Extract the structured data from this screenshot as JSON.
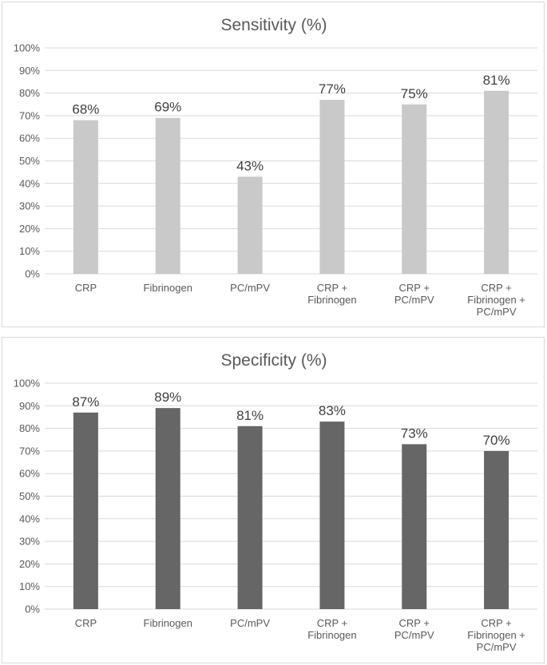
{
  "chart_data": [
    {
      "type": "bar",
      "title": "Sensitivity (%)",
      "categories": [
        [
          "CRP"
        ],
        [
          "Fibrinogen"
        ],
        [
          "PC/mPV"
        ],
        [
          "CRP +",
          "Fibrinogen"
        ],
        [
          "CRP +",
          "PC/mPV"
        ],
        [
          "CRP +",
          "Fibrinogen +",
          "PC/mPV"
        ]
      ],
      "values": [
        68,
        69,
        43,
        77,
        75,
        81
      ],
      "data_labels": [
        "68%",
        "69%",
        "43%",
        "77%",
        "75%",
        "81%"
      ],
      "yticks": [
        "0%",
        "10%",
        "20%",
        "30%",
        "40%",
        "50%",
        "60%",
        "70%",
        "80%",
        "90%",
        "100%"
      ],
      "ylim": [
        0,
        100
      ],
      "xlabel": "",
      "ylabel": "",
      "grid": true,
      "color": "#c9c9c9"
    },
    {
      "type": "bar",
      "title": "Specificity (%)",
      "categories": [
        [
          "CRP"
        ],
        [
          "Fibrinogen"
        ],
        [
          "PC/mPV"
        ],
        [
          "CRP +",
          "Fibrinogen"
        ],
        [
          "CRP +",
          "PC/mPV"
        ],
        [
          "CRP +",
          "Fibrinogen +",
          "PC/mPV"
        ]
      ],
      "values": [
        87,
        89,
        81,
        83,
        73,
        70
      ],
      "data_labels": [
        "87%",
        "89%",
        "81%",
        "83%",
        "73%",
        "70%"
      ],
      "yticks": [
        "0%",
        "10%",
        "20%",
        "30%",
        "40%",
        "50%",
        "60%",
        "70%",
        "80%",
        "90%",
        "100%"
      ],
      "ylim": [
        0,
        100
      ],
      "xlabel": "",
      "ylabel": "",
      "grid": true,
      "color": "#666666"
    }
  ]
}
